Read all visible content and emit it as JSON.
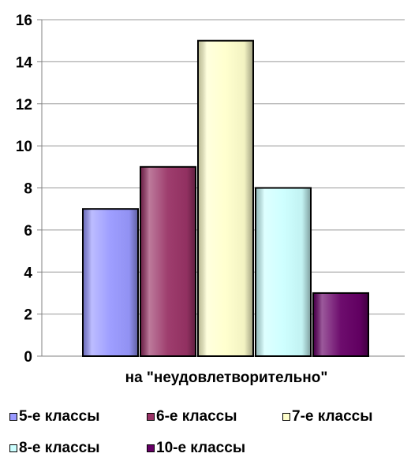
{
  "chart_data": {
    "type": "bar",
    "categories": [
      "на \"неудовлетворительно\""
    ],
    "series": [
      {
        "name": "5-е классы",
        "values": [
          7
        ],
        "color": "#9999ff"
      },
      {
        "name": "6-е классы",
        "values": [
          9
        ],
        "color": "#993366"
      },
      {
        "name": "7-е классы",
        "values": [
          15
        ],
        "color": "#ffffcc"
      },
      {
        "name": "8-е классы",
        "values": [
          8
        ],
        "color": "#ccffff"
      },
      {
        "name": "10-е классы",
        "values": [
          3
        ],
        "color": "#660066"
      }
    ],
    "ylim": [
      0,
      16
    ],
    "yticks": [
      "0",
      "2",
      "4",
      "6",
      "8",
      "10",
      "12",
      "14",
      "16"
    ],
    "grid": true,
    "legend_position": "bottom"
  }
}
